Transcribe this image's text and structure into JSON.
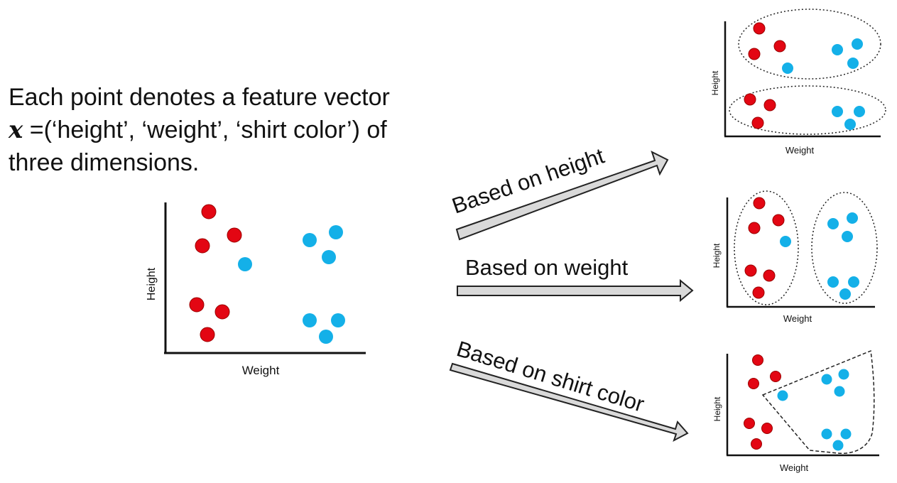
{
  "description": {
    "line1": "Each point denotes a feature vector",
    "vector_symbol": "x",
    "line2_rest": " =(‘height’, ‘weight’, ‘shirt color’) of",
    "line3": "three dimensions."
  },
  "colors": {
    "red": "#e30613",
    "red_stroke": "#9b0000",
    "blue": "#14b0e8",
    "axis": "#111111",
    "arrow_fill": "#d9d9d9",
    "arrow_stroke": "#222222"
  },
  "main_plot": {
    "xlabel": "Weight",
    "ylabel": "Height"
  },
  "arrows": [
    {
      "id": "height",
      "label": "Based on height"
    },
    {
      "id": "weight",
      "label": "Based on weight"
    },
    {
      "id": "shirt",
      "label": "Based on shirt color"
    }
  ],
  "result_plots": [
    {
      "id": "height",
      "xlabel": "Weight",
      "ylabel": "Height"
    },
    {
      "id": "weight",
      "xlabel": "Weight",
      "ylabel": "Height"
    },
    {
      "id": "shirt",
      "xlabel": "Weight",
      "ylabel": "Height"
    }
  ]
}
